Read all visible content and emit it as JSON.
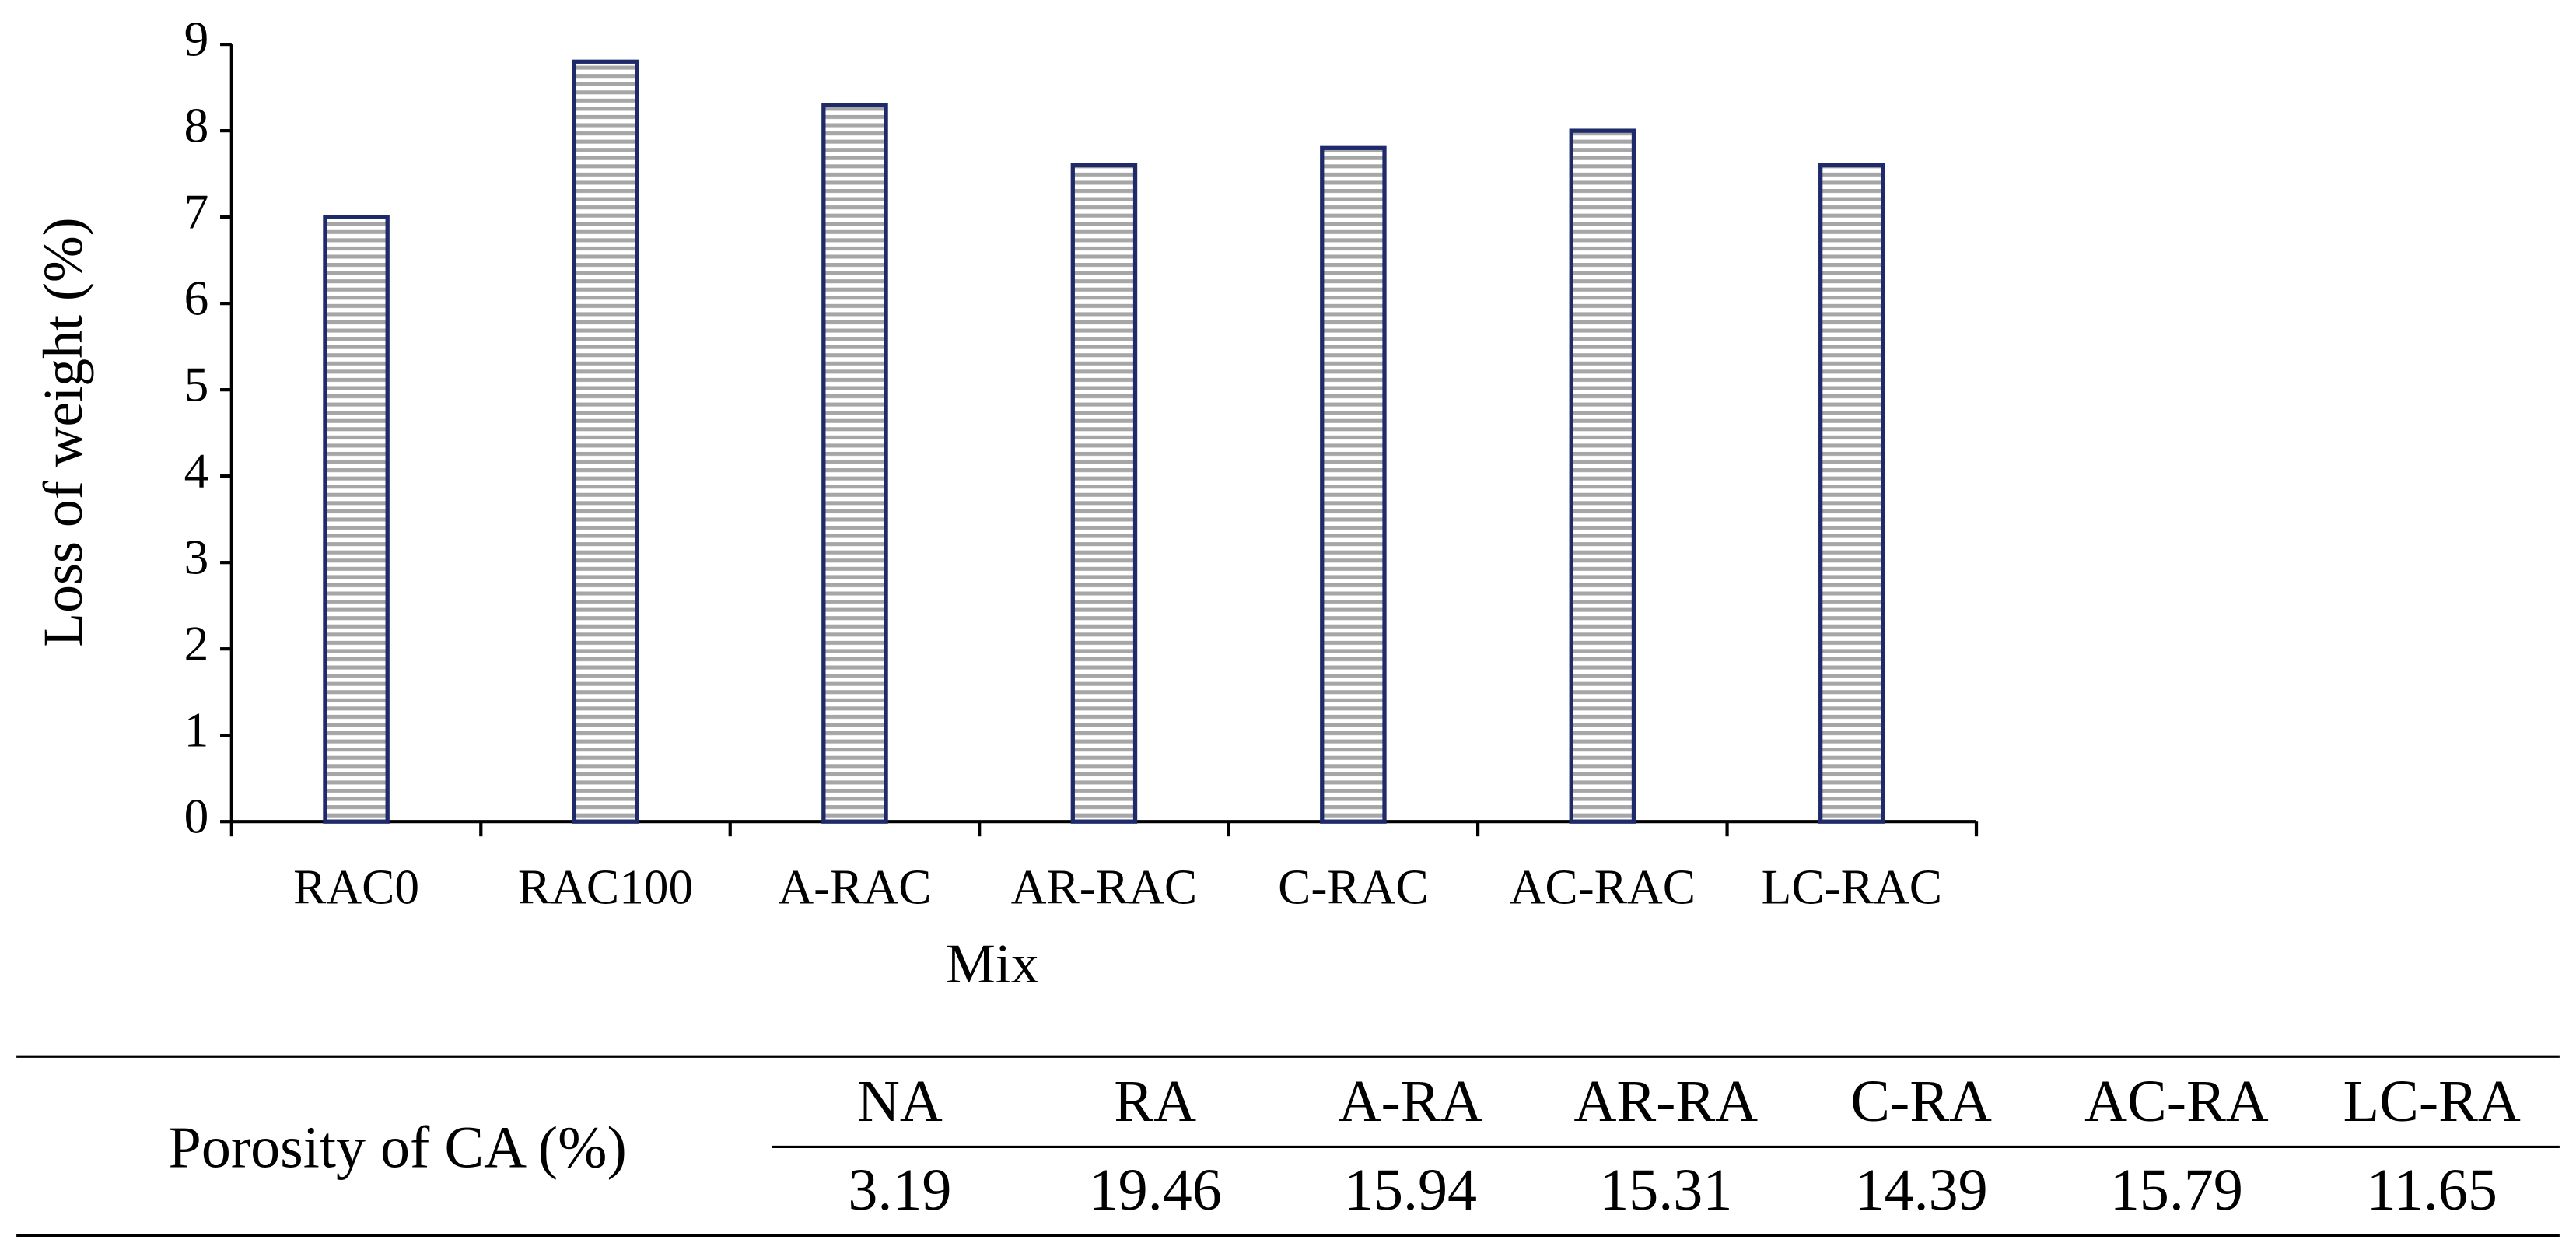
{
  "chart_data": {
    "type": "bar",
    "x_label": "Mix",
    "y_label": "Loss of weight (%)",
    "categories": [
      "RAC0",
      "RAC100",
      "A-RAC",
      "AR-RAC",
      "C-RAC",
      "AC-RAC",
      "LC-RAC"
    ],
    "values": [
      7,
      8.8,
      8.3,
      7.6,
      7.8,
      8.0,
      7.6
    ],
    "color": "#1f2a6b",
    "ylim": [
      0,
      9
    ],
    "yticks": [
      0,
      1,
      2,
      3,
      4,
      5,
      6,
      7,
      8,
      9
    ]
  },
  "table": {
    "row_header": "Porosity of CA (%)",
    "columns": [
      "NA",
      "RA",
      "A-RA",
      "AR-RA",
      "C-RA",
      "AC-RA",
      "LC-RA"
    ],
    "values": [
      3.19,
      19.46,
      15.94,
      15.31,
      14.39,
      15.79,
      11.65
    ]
  }
}
